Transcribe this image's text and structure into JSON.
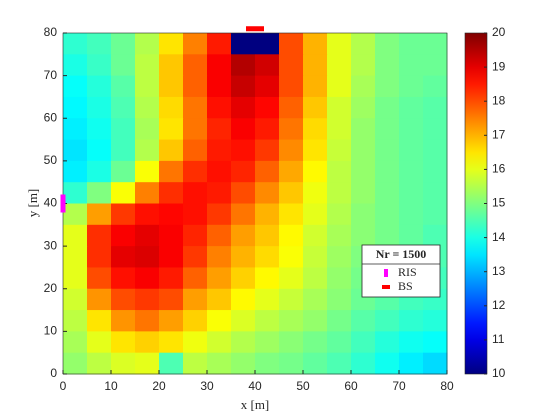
{
  "chart_data": {
    "type": "heatmap",
    "xlabel": "x [m]",
    "ylabel": "y [m]",
    "xlim": [
      0,
      80
    ],
    "ylim": [
      0,
      80
    ],
    "xticks": [
      0,
      10,
      20,
      30,
      40,
      50,
      60,
      70,
      80
    ],
    "yticks": [
      0,
      10,
      20,
      30,
      40,
      50,
      60,
      70,
      80
    ],
    "colormap": "jet",
    "clim": [
      10,
      20
    ],
    "cticks": [
      10,
      11,
      12,
      13,
      14,
      15,
      16,
      17,
      18,
      19,
      20
    ],
    "x": [
      2.5,
      7.5,
      12.5,
      17.5,
      22.5,
      27.5,
      32.5,
      37.5,
      42.5,
      47.5,
      52.5,
      57.5,
      62.5,
      67.5,
      72.5,
      77.5
    ],
    "y": [
      77.5,
      72.5,
      67.5,
      62.5,
      57.5,
      52.5,
      47.5,
      42.5,
      37.5,
      32.5,
      27.5,
      22.5,
      17.5,
      12.5,
      7.5,
      2.5
    ],
    "z": [
      [
        14.2,
        14.4,
        14.8,
        15.5,
        16.5,
        17.5,
        18.5,
        10,
        10,
        18,
        17,
        16,
        15.5,
        15,
        14.8,
        14.8
      ],
      [
        14,
        14.3,
        14.8,
        15.6,
        16.8,
        17.8,
        18.8,
        19.5,
        19.2,
        18,
        17,
        16,
        15.5,
        15,
        14.8,
        14.8
      ],
      [
        13.8,
        14.1,
        14.6,
        15.6,
        16.8,
        17.8,
        18.8,
        19.3,
        19,
        18,
        17,
        16,
        15.4,
        15,
        14.8,
        14.7
      ],
      [
        13.7,
        14,
        14.5,
        15.5,
        16.6,
        17.6,
        18.6,
        19,
        18.7,
        17.8,
        16.8,
        15.8,
        15.3,
        14.9,
        14.7,
        14.6
      ],
      [
        13.6,
        13.9,
        14.4,
        15.4,
        16.5,
        17.6,
        18.4,
        18.8,
        18.5,
        17.6,
        16.6,
        15.8,
        15.2,
        14.9,
        14.7,
        14.6
      ],
      [
        13.5,
        13.8,
        14.4,
        15.5,
        16.8,
        17.8,
        18.5,
        18.6,
        18.2,
        17.4,
        16.5,
        15.7,
        15.2,
        14.9,
        14.7,
        14.6
      ],
      [
        13.6,
        14,
        14.8,
        16.2,
        17.6,
        18.3,
        18.6,
        18.4,
        17.8,
        17.1,
        16.3,
        15.6,
        15.2,
        14.9,
        14.7,
        14.6
      ],
      [
        14.2,
        15,
        16.2,
        17.5,
        18.3,
        18.6,
        18.5,
        18,
        17.4,
        16.8,
        16.1,
        15.6,
        15.2,
        14.9,
        14.7,
        14.6
      ],
      [
        15.5,
        17.2,
        18.2,
        18.6,
        18.7,
        18.6,
        18.2,
        17.6,
        17,
        16.5,
        16,
        15.5,
        15.1,
        14.9,
        14.7,
        14.6
      ],
      [
        16,
        18.3,
        18.8,
        19,
        18.8,
        18.4,
        17.8,
        17.2,
        16.8,
        16.3,
        15.8,
        15.4,
        15.1,
        14.9,
        14.7,
        14.5
      ],
      [
        16,
        18.3,
        19,
        19.1,
        18.8,
        18.2,
        17.5,
        17,
        16.6,
        16.2,
        15.7,
        15.3,
        15,
        14.8,
        14.6,
        14.5
      ],
      [
        16,
        18,
        18.6,
        18.8,
        18.5,
        17.8,
        17.2,
        16.7,
        16.3,
        16,
        15.6,
        15.2,
        14.9,
        14.7,
        14.5,
        14.4
      ],
      [
        15.8,
        17.3,
        18,
        18.2,
        18,
        17.2,
        16.8,
        16.3,
        16,
        15.7,
        15.4,
        15.1,
        14.8,
        14.6,
        14.4,
        14.3
      ],
      [
        15.6,
        16.5,
        17.3,
        17.6,
        17.2,
        16.7,
        16.2,
        15.9,
        15.6,
        15.4,
        15.2,
        14.9,
        14.6,
        14.4,
        14.2,
        14.1
      ],
      [
        15.4,
        16,
        16.5,
        16.7,
        16.5,
        16.1,
        15.8,
        15.5,
        15.3,
        15.1,
        14.9,
        14.7,
        14.4,
        14.1,
        13.9,
        13.8
      ],
      [
        15.2,
        15.6,
        15.9,
        16,
        14.5,
        15.6,
        15.4,
        15.2,
        15,
        14.9,
        14.7,
        14.5,
        14.2,
        13.9,
        13.6,
        13.4
      ]
    ],
    "legend_title": "Nr = 1500",
    "markers": [
      {
        "name": "RIS",
        "color": "#ff00ff",
        "shape": "vbar",
        "x": 0,
        "y": 40
      },
      {
        "name": "BS",
        "color": "#ff0000",
        "shape": "hbar",
        "x": 40,
        "y": 81
      }
    ]
  }
}
